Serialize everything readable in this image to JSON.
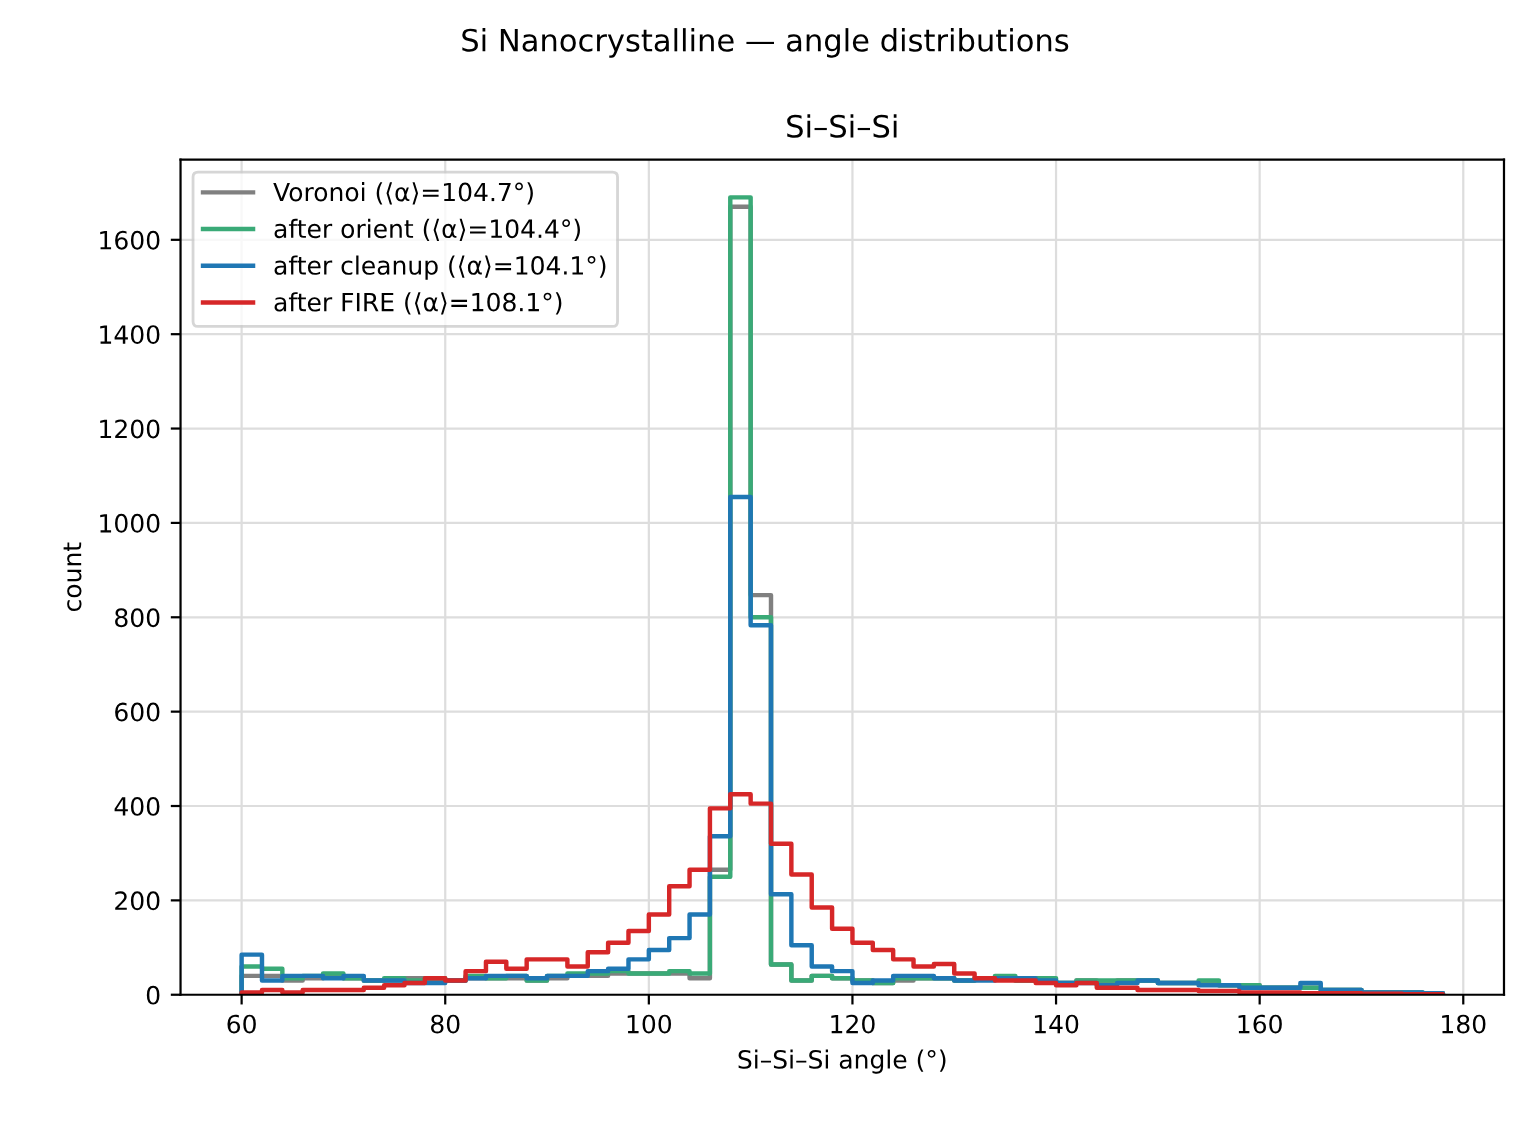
{
  "chart_data": {
    "type": "histogram",
    "title": "Si–Si–Si",
    "subtitle": "Si Nanocrystalline — angle distributions",
    "xlabel": "Si–Si–Si angle (°)",
    "ylabel": "count",
    "bins": [
      60,
      62,
      64,
      66,
      68,
      70,
      72,
      74,
      76,
      78,
      80,
      82,
      84,
      86,
      88,
      90,
      92,
      94,
      96,
      98,
      100,
      102,
      104,
      106,
      108,
      110,
      112,
      114,
      116,
      118,
      120,
      122,
      124,
      126,
      128,
      130,
      132,
      134,
      136,
      138,
      140,
      142,
      144,
      146,
      148,
      150,
      152,
      154,
      156,
      158,
      160,
      162,
      164,
      166,
      168,
      170,
      172,
      174,
      176,
      178
    ],
    "series": [
      {
        "name": "Voronoi (⟨α⟩=104.7°)",
        "color": "#808080",
        "values": [
          40,
          40,
          30,
          35,
          40,
          35,
          30,
          30,
          35,
          30,
          30,
          35,
          35,
          35,
          30,
          35,
          40,
          40,
          45,
          45,
          45,
          45,
          35,
          265,
          1670,
          847,
          64,
          30,
          40,
          35,
          30,
          25,
          30,
          35,
          35,
          30,
          35,
          35,
          30,
          30,
          25,
          30,
          25,
          30,
          30,
          25,
          25,
          25,
          20,
          20,
          15,
          15,
          15,
          10,
          10,
          5,
          5,
          5,
          3
        ]
      },
      {
        "name": "after orient (⟨α⟩=104.4°)",
        "color": "#3aaa77",
        "values": [
          60,
          55,
          35,
          40,
          45,
          35,
          30,
          35,
          30,
          35,
          30,
          40,
          35,
          40,
          30,
          40,
          45,
          45,
          50,
          45,
          45,
          50,
          45,
          250,
          1690,
          800,
          64,
          30,
          40,
          35,
          30,
          25,
          35,
          35,
          35,
          30,
          35,
          40,
          30,
          35,
          25,
          30,
          30,
          30,
          30,
          25,
          25,
          30,
          20,
          20,
          15,
          15,
          15,
          10,
          10,
          5,
          5,
          5,
          3
        ]
      },
      {
        "name": "after cleanup (⟨α⟩=104.1°)",
        "color": "#1f77b4",
        "values": [
          85,
          30,
          40,
          40,
          35,
          40,
          30,
          30,
          25,
          25,
          30,
          35,
          40,
          40,
          35,
          40,
          40,
          50,
          55,
          75,
          95,
          120,
          170,
          336,
          1055,
          783,
          213,
          105,
          60,
          50,
          25,
          30,
          40,
          40,
          35,
          30,
          30,
          35,
          35,
          30,
          25,
          25,
          20,
          25,
          30,
          25,
          25,
          20,
          20,
          15,
          15,
          15,
          25,
          10,
          10,
          5,
          5,
          5,
          3
        ]
      },
      {
        "name": "after FIRE (⟨α⟩=108.1°)",
        "color": "#d62728",
        "values": [
          5,
          10,
          5,
          10,
          10,
          10,
          15,
          20,
          25,
          35,
          30,
          50,
          70,
          55,
          75,
          75,
          60,
          90,
          110,
          135,
          170,
          230,
          265,
          395,
          425,
          405,
          320,
          255,
          185,
          140,
          110,
          95,
          75,
          60,
          65,
          45,
          35,
          30,
          30,
          25,
          20,
          25,
          15,
          15,
          10,
          10,
          10,
          8,
          8,
          5,
          5,
          5,
          3,
          3,
          3,
          2,
          2,
          1,
          1
        ]
      }
    ],
    "xlim": [
      54,
      184
    ],
    "xticks": [
      60,
      80,
      100,
      120,
      140,
      160,
      180
    ],
    "ylim": [
      0,
      1770
    ],
    "yticks": [
      0,
      200,
      400,
      600,
      800,
      1000,
      1200,
      1400,
      1600
    ],
    "grid": true,
    "legend": "top left",
    "line_style": "solid"
  }
}
